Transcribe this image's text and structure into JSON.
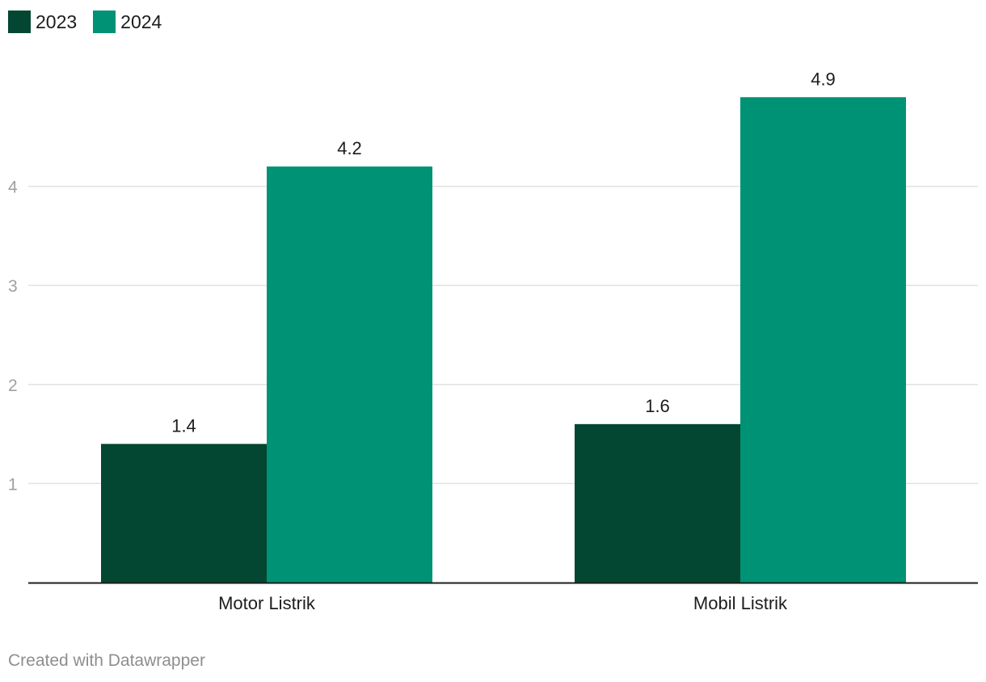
{
  "chart_data": {
    "type": "bar",
    "categories": [
      "Motor Listrik",
      "Mobil Listrik"
    ],
    "series": [
      {
        "name": "2023",
        "color": "#034631",
        "values": [
          1.4,
          1.6
        ]
      },
      {
        "name": "2024",
        "color": "#009274",
        "values": [
          4.2,
          4.9
        ]
      }
    ],
    "y_ticks": [
      1,
      2,
      3,
      4
    ],
    "ylim": [
      0,
      5
    ],
    "grid": true,
    "legend_position": "top-left",
    "title": "",
    "xlabel": "",
    "ylabel": ""
  },
  "footer": {
    "credit": "Created with Datawrapper"
  }
}
